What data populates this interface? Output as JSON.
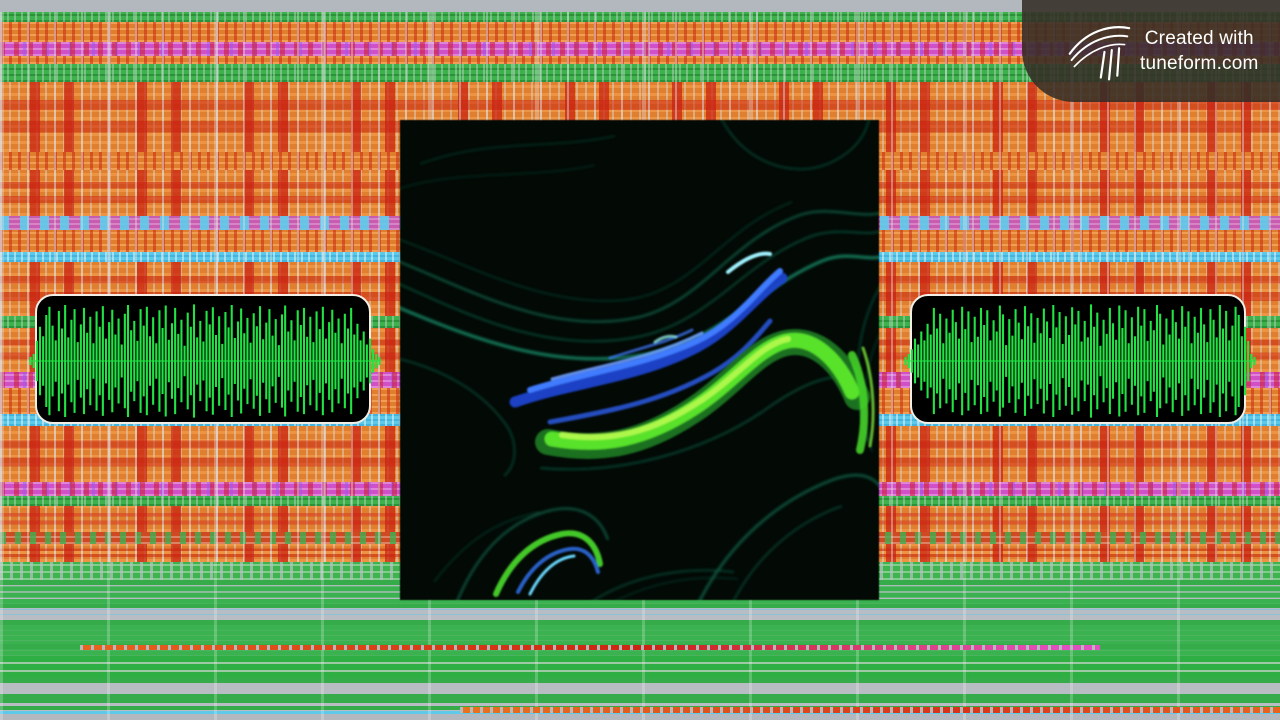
{
  "watermark": {
    "line1": "Created with",
    "line2": "tuneform.com",
    "logo_icon": "tuneform-logo-icon"
  },
  "album_art": {
    "alt": "Abstract black album artwork with swirling marbled waves of bright green, teal, cyan and blue"
  },
  "waveform": {
    "style": "oscilloscope-line",
    "samples": [
      0.07,
      0.12,
      0.34,
      0.58,
      0.42,
      0.78,
      0.92,
      0.6,
      0.35,
      0.85,
      0.55,
      0.95,
      0.4,
      0.7,
      0.88,
      0.32,
      0.62,
      0.9,
      0.48,
      0.75,
      0.3,
      0.84,
      0.58,
      0.93,
      0.38,
      0.66,
      0.87,
      0.45,
      0.72,
      0.28,
      0.8,
      0.95,
      0.52,
      0.68,
      0.34,
      0.88,
      0.6,
      0.92,
      0.42,
      0.74,
      0.3,
      0.86,
      0.56,
      0.94,
      0.36,
      0.64,
      0.9,
      0.46,
      0.7,
      0.26,
      0.82,
      0.58,
      0.96,
      0.4,
      0.68,
      0.33,
      0.85,
      0.62,
      0.91,
      0.44,
      0.76,
      0.29,
      0.83,
      0.57,
      0.95,
      0.39,
      0.67,
      0.89,
      0.47,
      0.73,
      0.31,
      0.81,
      0.59,
      0.93,
      0.37,
      0.65,
      0.88,
      0.43,
      0.71,
      0.27,
      0.79,
      0.94,
      0.5,
      0.69,
      0.35,
      0.86,
      0.61,
      0.9,
      0.41,
      0.75,
      0.32,
      0.84,
      0.54,
      0.92,
      0.38,
      0.66,
      0.87,
      0.48,
      0.72,
      0.3,
      0.8,
      0.55,
      0.9,
      0.45,
      0.63,
      0.35,
      0.5,
      0.28,
      0.38,
      0.2,
      0.12,
      0.07
    ]
  },
  "colors": {
    "accent_green_waveform": "#22e344",
    "panel_bg": "#000000",
    "panel_border": "#f2efe6",
    "watermark_bg": "rgba(52,44,38,0.88)",
    "watermark_text": "#ffffff",
    "bg_orange": "#e0812f",
    "bg_red": "#cc2814",
    "bg_magenta": "#d44fc4",
    "bg_green": "#3cb14c",
    "bg_cyan": "#5cc9e8",
    "bg_gray": "#b2b8be",
    "art_green": "#66ee33",
    "art_blue": "#3f7bff",
    "art_teal": "#0f6047",
    "art_cyan": "#9ff3ff"
  }
}
